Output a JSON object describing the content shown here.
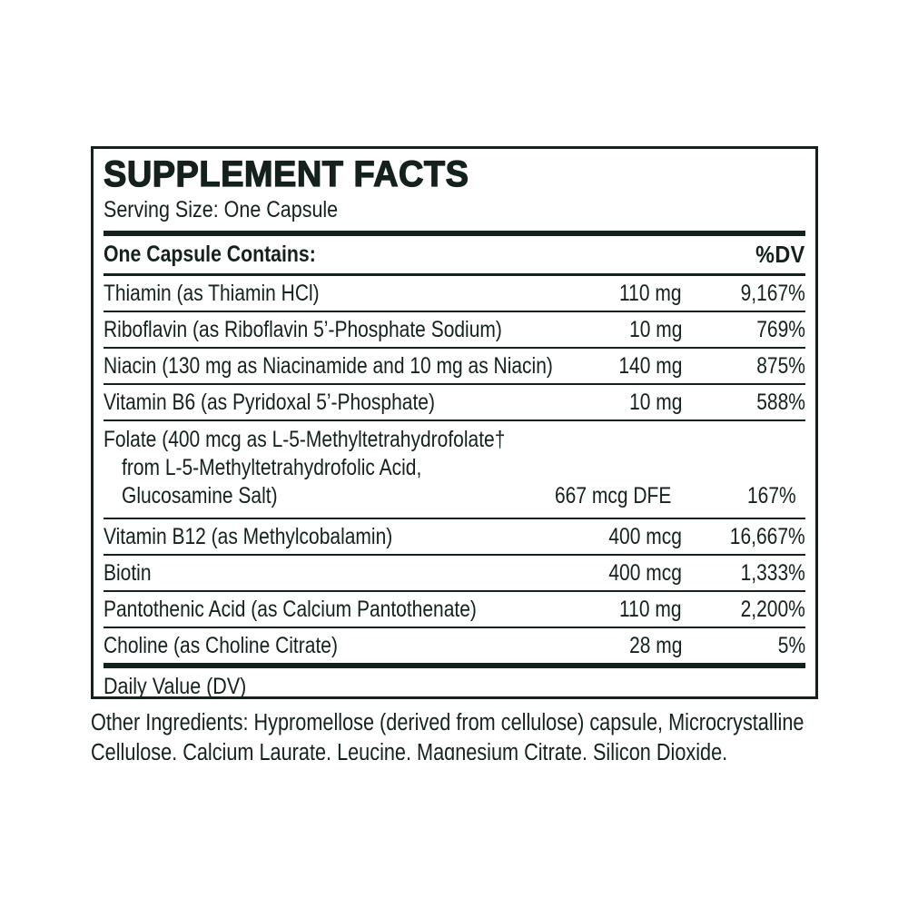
{
  "panel": {
    "title": "SUPPLEMENT FACTS",
    "serving_size": "Serving Size: One Capsule",
    "header": {
      "left": "One Capsule Contains:",
      "right": "%DV"
    },
    "rows": [
      {
        "name": "Thiamin (as Thiamin HCl)",
        "amount": "110 mg",
        "dv": "9,167%"
      },
      {
        "name": "Riboflavin (as Riboflavin 5’-Phosphate Sodium)",
        "amount": "10 mg",
        "dv": "769%"
      },
      {
        "name": "Niacin (130 mg as Niacinamide and 10 mg as Niacin)",
        "amount": "140 mg",
        "dv": "875%"
      },
      {
        "name": "Vitamin B6 (as Pyridoxal 5’-Phosphate)",
        "amount": "10 mg",
        "dv": "588%"
      },
      {
        "name_lines": [
          "Folate (400 mcg as L-5-Methyltetrahydrofolate†",
          "from L-5-Methyltetrahydrofolic Acid,",
          "Glucosamine Salt)"
        ],
        "amount": "667 mcg DFE",
        "dv": "167%"
      },
      {
        "name": "Vitamin B12 (as Methylcobalamin)",
        "amount": "400 mcg",
        "dv": "16,667%"
      },
      {
        "name": "Biotin",
        "amount": "400 mcg",
        "dv": "1,333%"
      },
      {
        "name": "Pantothenic Acid (as Calcium Pantothenate)",
        "amount": "110 mg",
        "dv": "2,200%"
      },
      {
        "name": "Choline (as Choline Citrate)",
        "amount": "28 mg",
        "dv": "5%"
      }
    ],
    "footnote": "Daily Value (DV)"
  },
  "other_ingredients_lines": [
    "Other Ingredients: Hypromellose (derived from cellulose) capsule, Microcrystalline",
    "Cellulose, Calcium Laurate, Leucine, Magnesium Citrate, Silicon Dioxide."
  ],
  "colors": {
    "ink": "#14211c",
    "background": "#ffffff"
  }
}
